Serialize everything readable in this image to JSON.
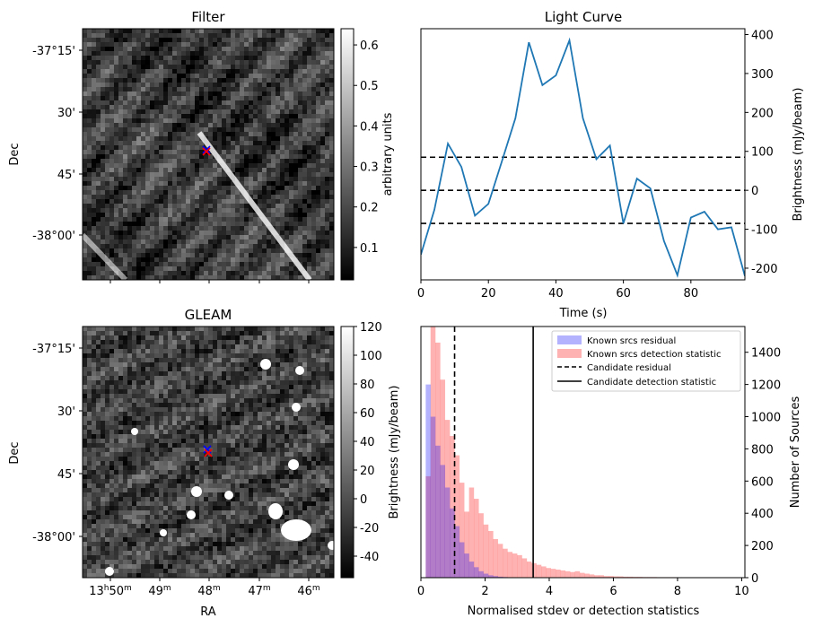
{
  "chart_data": [
    {
      "type": "heatmap",
      "title": "Filter",
      "ylabel": "Dec",
      "y_ticks": [
        "-37°15'",
        "30'",
        "45'",
        "-38°00'"
      ],
      "colorbar": {
        "label": "arbitrary units",
        "ticks": [
          "0.1",
          "0.2",
          "0.3",
          "0.4",
          "0.5",
          "0.6"
        ],
        "range": [
          0.02,
          0.64
        ]
      },
      "markers": [
        {
          "symbol": "x",
          "color": "#0000ff"
        },
        {
          "symbol": "x",
          "color": "#ff0000"
        }
      ]
    },
    {
      "type": "line",
      "title": "Light Curve",
      "xlabel": "Time (s)",
      "ylabel": "Brightness (mJy/beam)",
      "xlim": [
        0,
        96
      ],
      "ylim": [
        -230,
        415
      ],
      "x_ticks": [
        0,
        20,
        40,
        60,
        80
      ],
      "y_ticks": [
        -200,
        -100,
        0,
        100,
        200,
        300,
        400
      ],
      "series": [
        {
          "color": "#1f77b4",
          "x": [
            0,
            4,
            8,
            12,
            16,
            20,
            24,
            28,
            32,
            36,
            40,
            44,
            48,
            52,
            56,
            60,
            64,
            68,
            72,
            76,
            80,
            84,
            88,
            92,
            96
          ],
          "y": [
            -165,
            -50,
            120,
            60,
            -65,
            -35,
            75,
            185,
            380,
            270,
            295,
            385,
            185,
            80,
            115,
            -85,
            30,
            5,
            -130,
            -218,
            -70,
            -55,
            -100,
            -95,
            -220
          ]
        }
      ],
      "hlines": [
        {
          "y": 85,
          "style": "dashed",
          "color": "#000000"
        },
        {
          "y": 0,
          "style": "dashed",
          "color": "#000000"
        },
        {
          "y": -85,
          "style": "dashed",
          "color": "#000000"
        }
      ]
    },
    {
      "type": "heatmap",
      "title": "GLEAM",
      "xlabel": "RA",
      "ylabel": "Dec",
      "x_ticks": [
        "13h50m",
        "49m",
        "48m",
        "47m",
        "46m"
      ],
      "y_ticks": [
        "-37°15'",
        "30'",
        "45'",
        "-38°00'"
      ],
      "colorbar": {
        "label": "Brightness (mJy/beam)",
        "ticks": [
          "-40",
          "-20",
          "0",
          "20",
          "40",
          "60",
          "80",
          "100",
          "120"
        ],
        "range": [
          -55,
          120
        ]
      },
      "markers": [
        {
          "symbol": "x",
          "color": "#0000ff"
        },
        {
          "symbol": "x",
          "color": "#ff0000"
        }
      ]
    },
    {
      "type": "bar",
      "xlabel": "Normalised stdev or detection statistics",
      "ylabel": "Number of Sources",
      "xlim": [
        0,
        10.1
      ],
      "ylim": [
        0,
        1560
      ],
      "x_ticks": [
        0,
        2,
        4,
        6,
        8,
        10
      ],
      "y_ticks": [
        0,
        200,
        400,
        600,
        800,
        1000,
        1200,
        1400
      ],
      "bin_width": 0.15,
      "series": [
        {
          "name": "Known srcs residual",
          "color": "#0000ff",
          "opacity": 0.3,
          "values": [
            0,
            1200,
            1000,
            820,
            700,
            560,
            430,
            320,
            220,
            150,
            100,
            65,
            40,
            25,
            15,
            10,
            6,
            4,
            2,
            1
          ]
        },
        {
          "name": "Known srcs detection statistic",
          "color": "#ff0000",
          "opacity": 0.3,
          "values": [
            0,
            630,
            1560,
            1460,
            1230,
            980,
            880,
            760,
            590,
            410,
            560,
            490,
            400,
            330,
            290,
            240,
            210,
            180,
            160,
            150,
            140,
            120,
            100,
            90,
            80,
            70,
            60,
            55,
            50,
            45,
            40,
            35,
            40,
            30,
            25,
            20,
            15,
            15,
            10,
            10,
            8,
            8,
            6,
            6,
            5,
            5,
            4,
            4,
            4,
            3,
            3,
            3,
            3,
            2,
            2,
            2,
            2,
            2,
            2,
            1,
            1,
            1,
            1,
            1,
            1,
            1,
            1,
            1,
            1,
            1,
            1
          ]
        }
      ],
      "vlines": [
        {
          "name": "Candidate residual",
          "x": 1.05,
          "style": "dashed",
          "color": "#000000"
        },
        {
          "name": "Candidate detection statistic",
          "x": 3.5,
          "style": "solid",
          "color": "#000000"
        }
      ],
      "legend": "top-right"
    }
  ]
}
